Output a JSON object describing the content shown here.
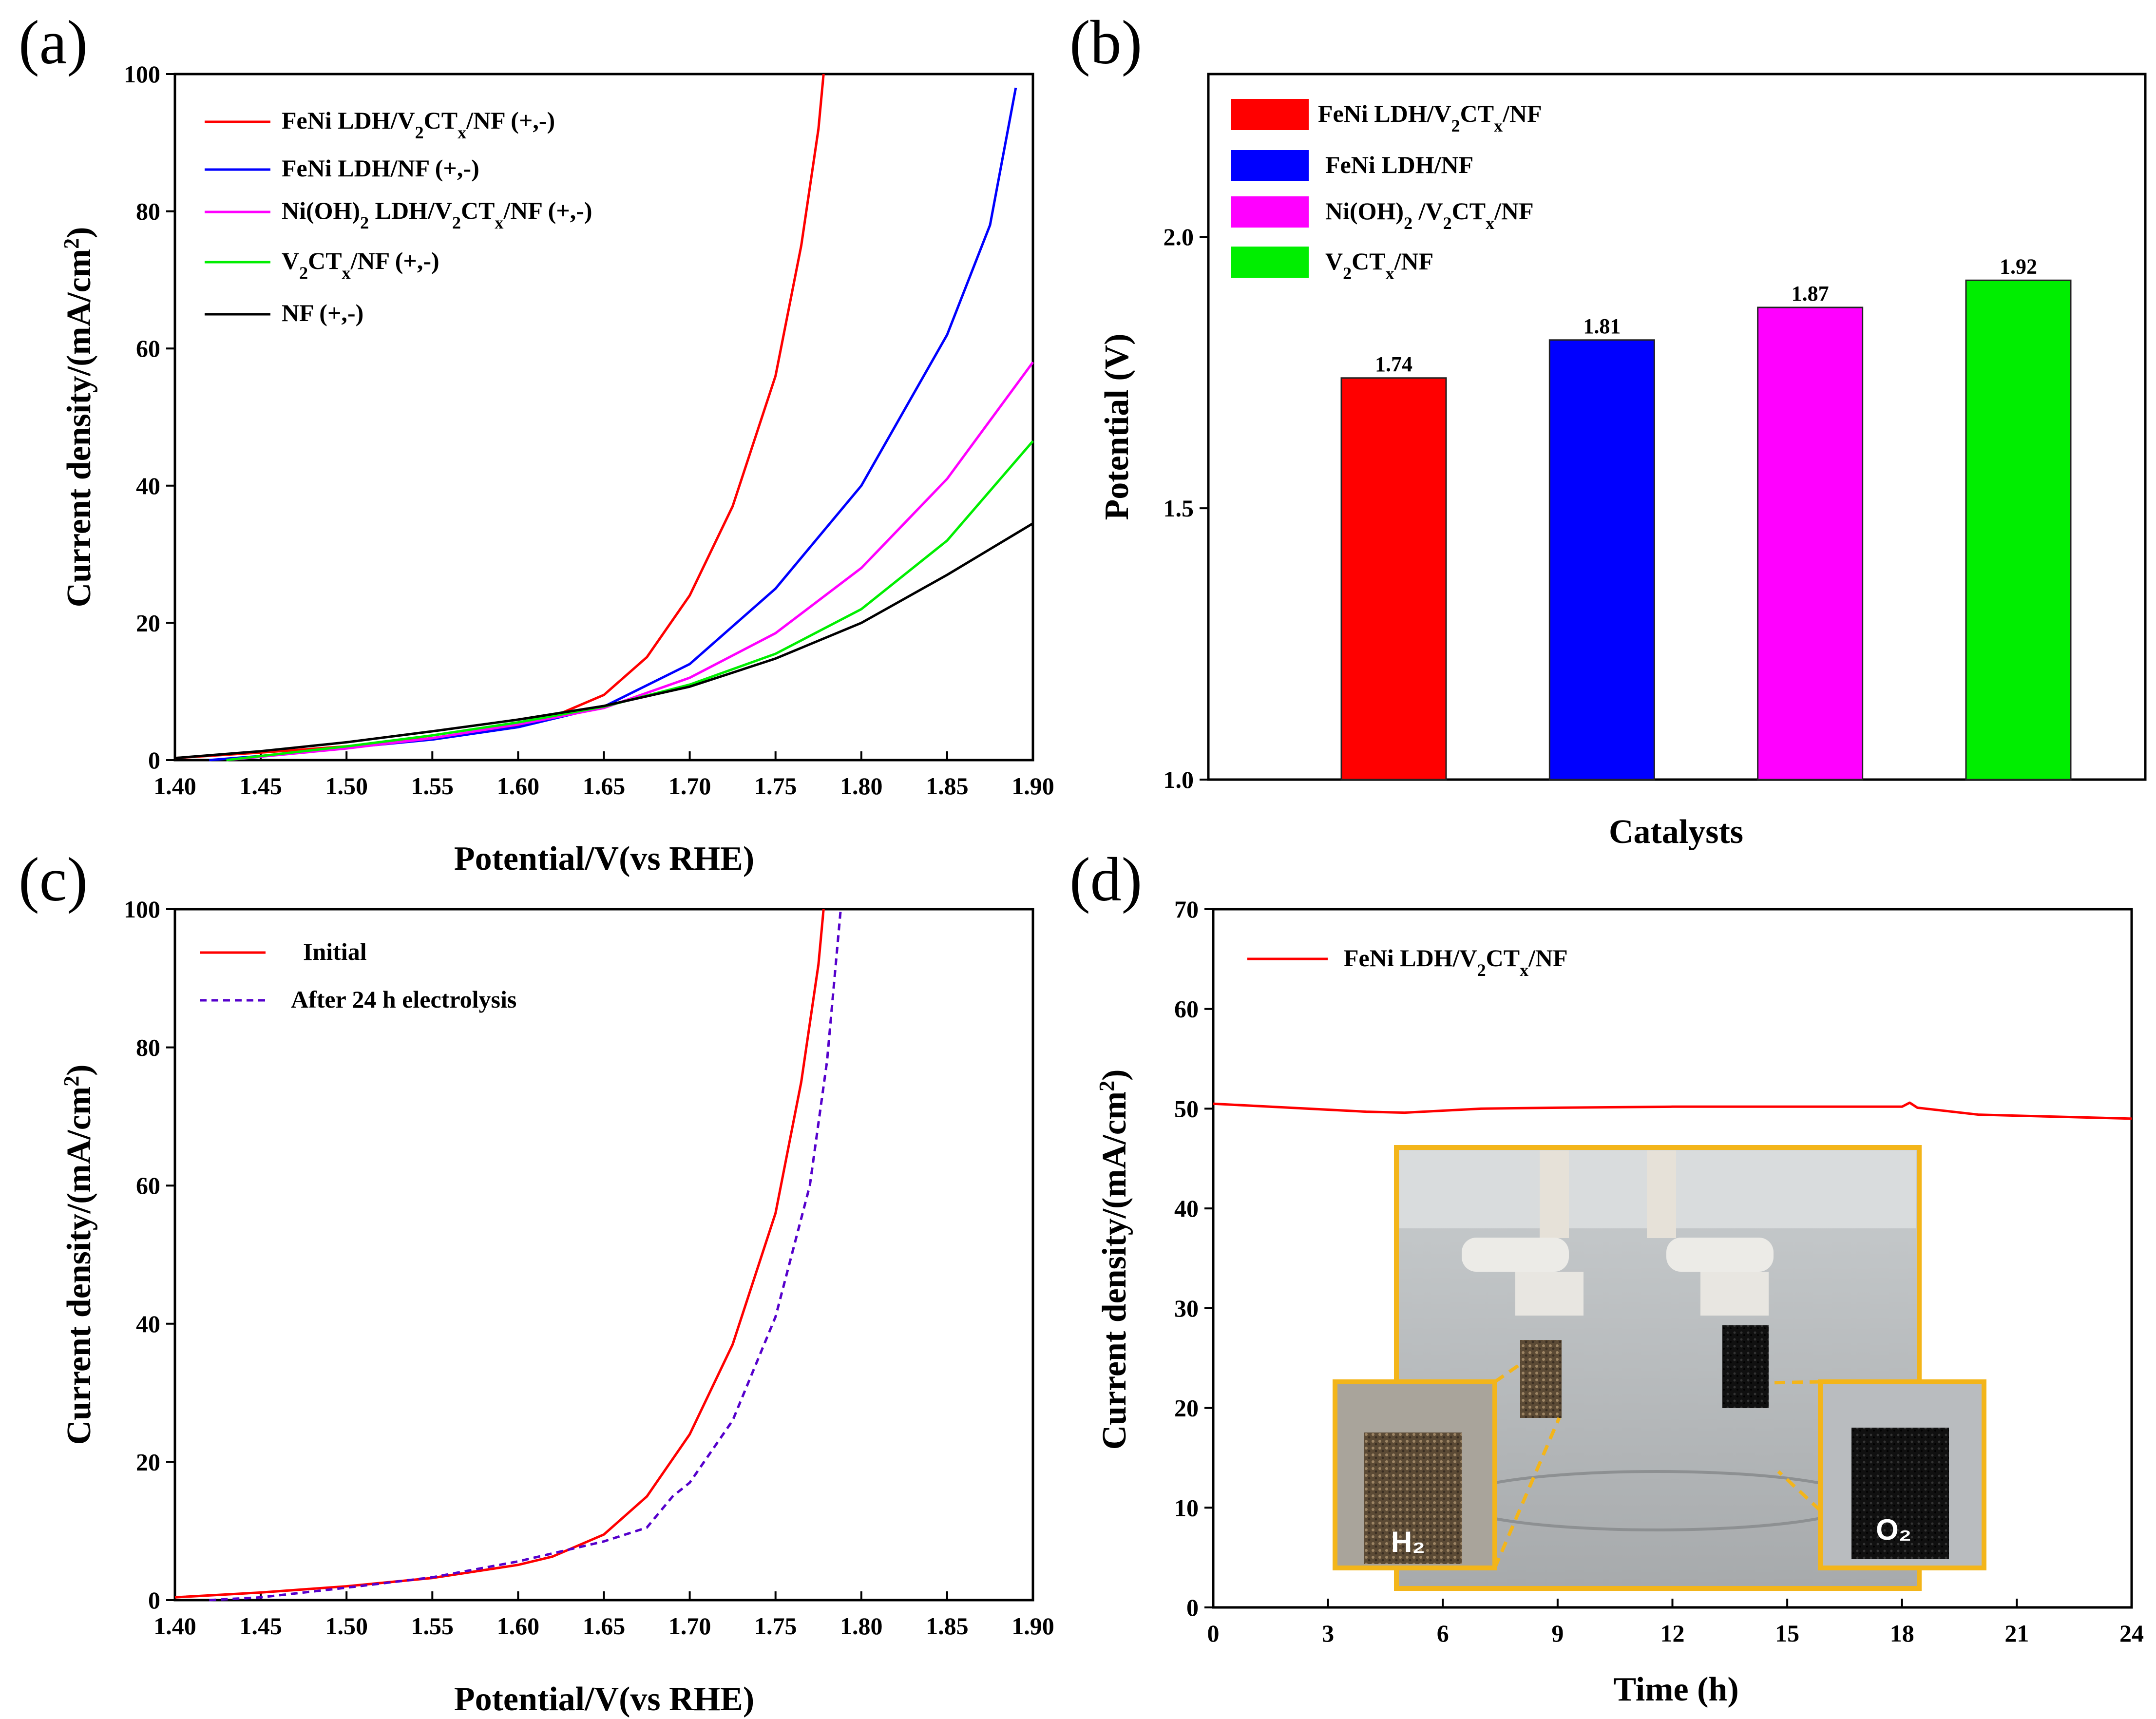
{
  "chart_data": [
    {
      "panel": "(a)",
      "type": "line",
      "xlabel": "Potential/V(vs RHE)",
      "ylabel": "Current density/(mA/cm²)",
      "xlim": [
        1.4,
        1.9
      ],
      "ylim": [
        0,
        100
      ],
      "xticks": [
        "1.40",
        "1.45",
        "1.50",
        "1.55",
        "1.60",
        "1.65",
        "1.70",
        "1.75",
        "1.80",
        "1.85",
        "1.90"
      ],
      "yticks": [
        "0",
        "20",
        "40",
        "60",
        "80",
        "100"
      ],
      "legend_position": "top-left",
      "series": [
        {
          "name": "FeNi LDH/V₂CTₓ/NF (+,-)",
          "color": "#ff0000",
          "dash": "solid",
          "points": [
            [
              1.4,
              0.3
            ],
            [
              1.45,
              1.1
            ],
            [
              1.5,
              2.0
            ],
            [
              1.55,
              3.2
            ],
            [
              1.6,
              5.1
            ],
            [
              1.62,
              6.3
            ],
            [
              1.65,
              9.5
            ],
            [
              1.675,
              15
            ],
            [
              1.7,
              24
            ],
            [
              1.725,
              37
            ],
            [
              1.75,
              56
            ],
            [
              1.765,
              75
            ],
            [
              1.775,
              92
            ],
            [
              1.778,
              100
            ]
          ]
        },
        {
          "name": "FeNi LDH/NF (+,-)",
          "color": "#0000ff",
          "dash": "solid",
          "points": [
            [
              1.42,
              0.0
            ],
            [
              1.45,
              0.6
            ],
            [
              1.5,
              1.8
            ],
            [
              1.55,
              3.0
            ],
            [
              1.6,
              4.8
            ],
            [
              1.65,
              7.8
            ],
            [
              1.7,
              14
            ],
            [
              1.75,
              25
            ],
            [
              1.8,
              40
            ],
            [
              1.85,
              62
            ],
            [
              1.875,
              78
            ],
            [
              1.89,
              98
            ]
          ]
        },
        {
          "name": "Ni(OH)₂ LDH/V₂CTₓ/NF (+,-)",
          "color": "#ff00ff",
          "dash": "solid",
          "points": [
            [
              1.43,
              0.0
            ],
            [
              1.45,
              0.5
            ],
            [
              1.5,
              1.7
            ],
            [
              1.55,
              3.2
            ],
            [
              1.6,
              5.2
            ],
            [
              1.65,
              7.6
            ],
            [
              1.7,
              12
            ],
            [
              1.75,
              18.5
            ],
            [
              1.8,
              28
            ],
            [
              1.85,
              41
            ],
            [
              1.9,
              58
            ]
          ]
        },
        {
          "name": "V₂CTₓ/NF (+,-)",
          "color": "#00ee00",
          "dash": "solid",
          "points": [
            [
              1.43,
              0.0
            ],
            [
              1.45,
              0.6
            ],
            [
              1.5,
              2.0
            ],
            [
              1.55,
              3.6
            ],
            [
              1.6,
              5.5
            ],
            [
              1.65,
              7.8
            ],
            [
              1.7,
              11
            ],
            [
              1.75,
              15.5
            ],
            [
              1.8,
              22
            ],
            [
              1.85,
              32
            ],
            [
              1.9,
              46.5
            ]
          ]
        },
        {
          "name": "NF (+,-)",
          "color": "#000000",
          "dash": "solid",
          "points": [
            [
              1.4,
              0.3
            ],
            [
              1.45,
              1.3
            ],
            [
              1.5,
              2.6
            ],
            [
              1.55,
              4.2
            ],
            [
              1.6,
              5.9
            ],
            [
              1.65,
              7.9
            ],
            [
              1.7,
              10.7
            ],
            [
              1.75,
              14.8
            ],
            [
              1.8,
              20
            ],
            [
              1.85,
              27
            ],
            [
              1.9,
              34.5
            ]
          ]
        }
      ]
    },
    {
      "panel": "(b)",
      "type": "bar",
      "xlabel": "Catalysts",
      "ylabel": "Potential (V)",
      "ylim": [
        1.0,
        2.3
      ],
      "yticks": [
        "1.0",
        "1.5",
        "2.0"
      ],
      "legend_position": "top-left",
      "categories": [
        "FeNi LDH/V₂CTₓ/NF",
        "FeNi LDH/NF",
        "Ni(OH)₂ /V₂CTₓ/NF",
        "V₂CTₓ/NF"
      ],
      "values": [
        1.74,
        1.81,
        1.87,
        1.92
      ],
      "value_labels": [
        "1.74",
        "1.81",
        "1.87",
        "1.92"
      ],
      "colors": [
        "#ff0000",
        "#0000ff",
        "#ff00ff",
        "#00ee00"
      ]
    },
    {
      "panel": "(c)",
      "type": "line",
      "xlabel": "Potential/V(vs RHE)",
      "ylabel": "Current density/(mA/cm²)",
      "xlim": [
        1.4,
        1.9
      ],
      "ylim": [
        0,
        100
      ],
      "xticks": [
        "1.40",
        "1.45",
        "1.50",
        "1.55",
        "1.60",
        "1.65",
        "1.70",
        "1.75",
        "1.80",
        "1.85",
        "1.90"
      ],
      "yticks": [
        "0",
        "20",
        "40",
        "60",
        "80",
        "100"
      ],
      "legend_position": "top-left",
      "series": [
        {
          "name": "Initial",
          "color": "#ff0000",
          "dash": "solid",
          "points": [
            [
              1.4,
              0.4
            ],
            [
              1.45,
              1.1
            ],
            [
              1.5,
              2.0
            ],
            [
              1.55,
              3.2
            ],
            [
              1.6,
              5.1
            ],
            [
              1.62,
              6.3
            ],
            [
              1.65,
              9.5
            ],
            [
              1.675,
              15
            ],
            [
              1.7,
              24
            ],
            [
              1.725,
              37
            ],
            [
              1.75,
              56
            ],
            [
              1.765,
              75
            ],
            [
              1.775,
              92
            ],
            [
              1.778,
              100
            ]
          ]
        },
        {
          "name": "After 24 h electrolysis",
          "color": "#5500cc",
          "dash": "dashed",
          "points": [
            [
              1.42,
              0.0
            ],
            [
              1.45,
              0.4
            ],
            [
              1.5,
              1.8
            ],
            [
              1.55,
              3.3
            ],
            [
              1.6,
              5.6
            ],
            [
              1.65,
              8.5
            ],
            [
              1.675,
              10.5
            ],
            [
              1.69,
              15
            ],
            [
              1.7,
              17
            ],
            [
              1.725,
              26
            ],
            [
              1.75,
              41
            ],
            [
              1.77,
              60
            ],
            [
              1.78,
              78
            ],
            [
              1.788,
              100
            ]
          ]
        }
      ]
    },
    {
      "panel": "(d)",
      "type": "line",
      "xlabel": "Time (h)",
      "ylabel": "Current density/(mA/cm²)",
      "xlim": [
        0,
        24
      ],
      "ylim": [
        0,
        70
      ],
      "xticks": [
        "0",
        "3",
        "6",
        "9",
        "12",
        "15",
        "18",
        "21",
        "24"
      ],
      "yticks": [
        "0",
        "10",
        "20",
        "30",
        "40",
        "50",
        "60",
        "70"
      ],
      "legend_position": "top-left",
      "series": [
        {
          "name": "FeNi LDH/V₂CTₓ/NF",
          "color": "#ff0000",
          "dash": "solid",
          "points": [
            [
              0,
              50.5
            ],
            [
              2,
              50.1
            ],
            [
              4,
              49.7
            ],
            [
              5,
              49.6
            ],
            [
              6,
              49.8
            ],
            [
              7,
              50.0
            ],
            [
              9,
              50.1
            ],
            [
              12,
              50.2
            ],
            [
              15,
              50.2
            ],
            [
              18,
              50.2
            ],
            [
              18.2,
              50.6
            ],
            [
              18.4,
              50.1
            ],
            [
              20,
              49.4
            ],
            [
              22,
              49.2
            ],
            [
              24,
              49.0
            ]
          ]
        }
      ],
      "inset_photo_labels": [
        "H₂",
        "O₂"
      ]
    }
  ]
}
